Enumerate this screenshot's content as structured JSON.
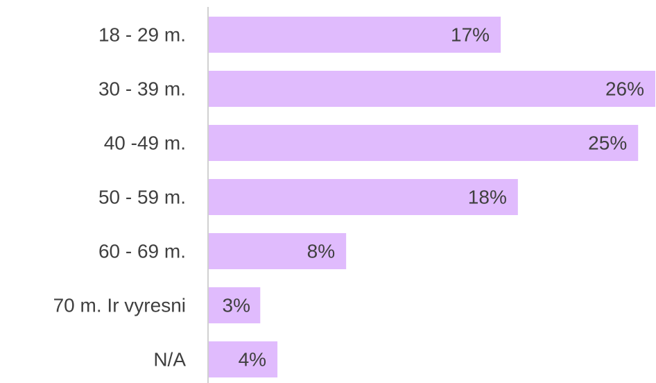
{
  "chart_data": {
    "type": "hbar",
    "categories": [
      "18 - 29 m.",
      "30 - 39 m.",
      "40 -49 m.",
      "50 - 59 m.",
      "60 - 69 m.",
      "70 m. Ir vyresni",
      "N/A"
    ],
    "values": [
      17,
      26,
      25,
      18,
      8,
      3,
      4
    ],
    "value_labels": [
      "17%",
      "26%",
      "25%",
      "18%",
      "8%",
      "3%",
      "4%"
    ],
    "color": "#e0bbfd",
    "xlim": [
      0,
      26
    ]
  }
}
